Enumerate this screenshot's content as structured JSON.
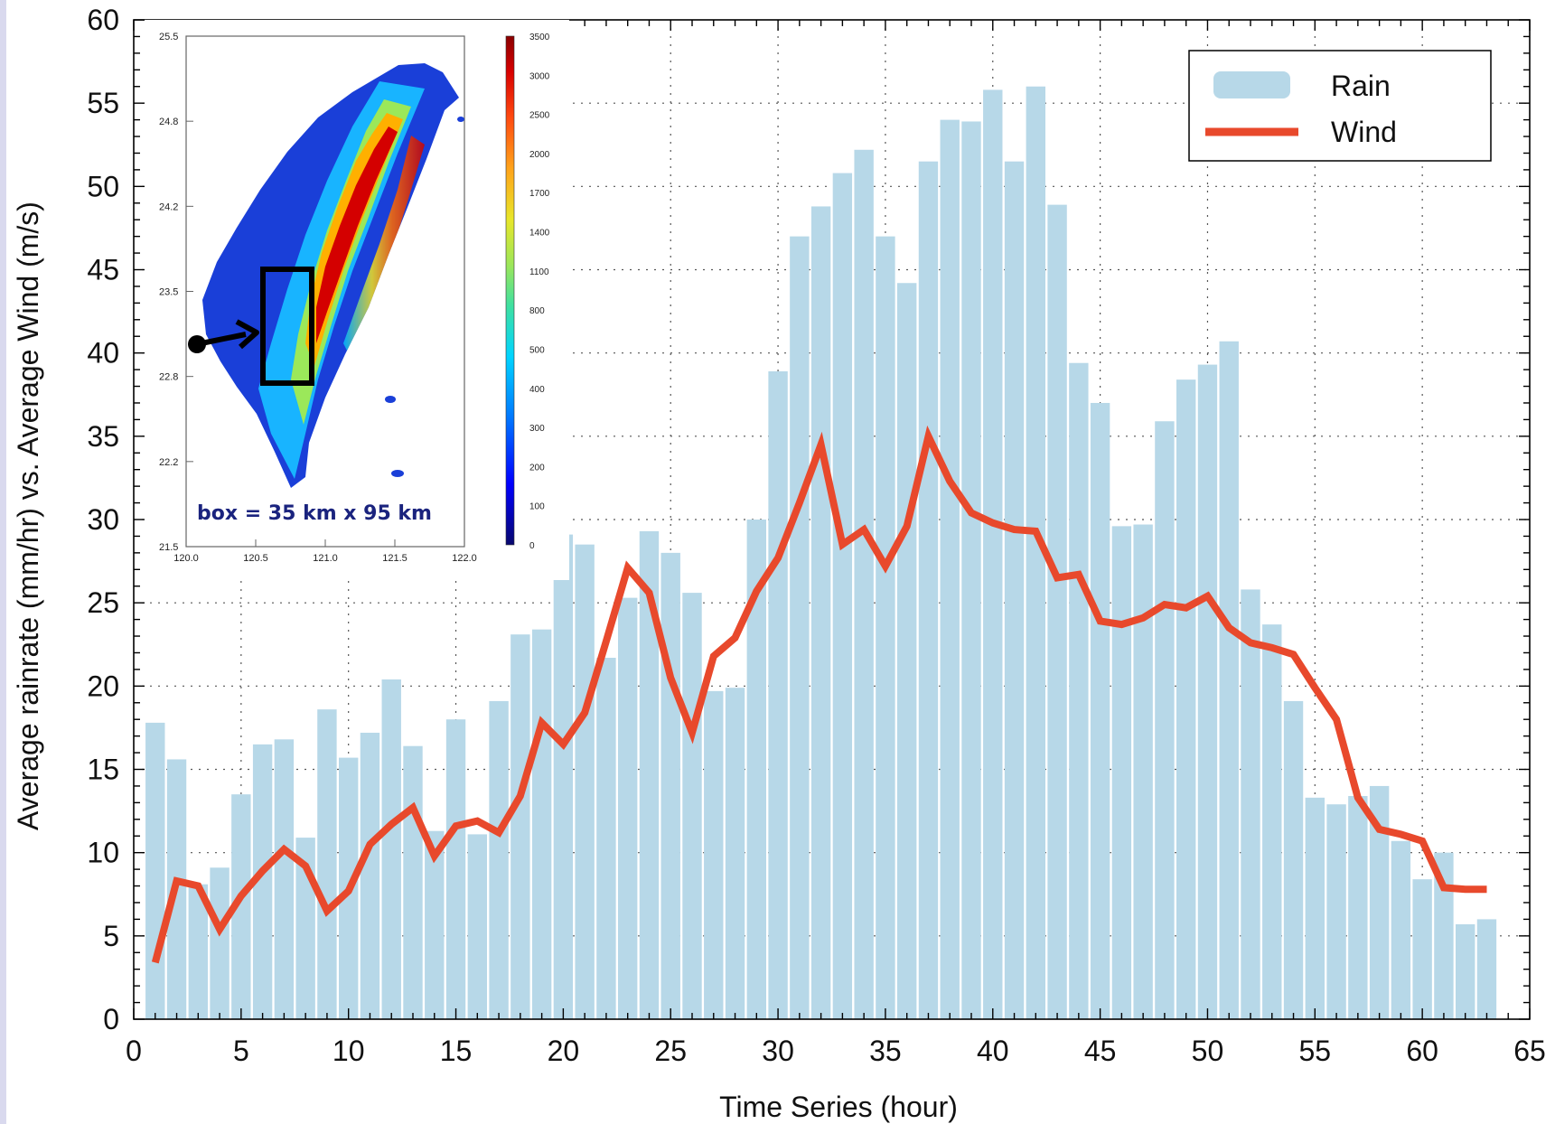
{
  "colors": {
    "rain": "#b7d8e8",
    "wind": "#e8492c",
    "frame": "#000000",
    "grid": "#555555",
    "left_strip": "#d9d9ee"
  },
  "chart_data": {
    "type": "bar",
    "title": "",
    "xlabel": "Time Series (hour)",
    "ylabel": "Average rainrate (mm/hr) vs. Average Wind (m/s)",
    "xlim": [
      0,
      65
    ],
    "ylim": [
      0,
      60
    ],
    "x_ticks": [
      "0",
      "5",
      "10",
      "15",
      "20",
      "25",
      "30",
      "35",
      "40",
      "45",
      "50",
      "55",
      "60",
      "65"
    ],
    "y_ticks": [
      "0",
      "5",
      "10",
      "15",
      "20",
      "25",
      "30",
      "35",
      "40",
      "45",
      "50",
      "55",
      "60"
    ],
    "grid": true,
    "legend": {
      "placement": "top-right",
      "entries": [
        {
          "label": "Rain",
          "style": "bar"
        },
        {
          "label": "Wind",
          "style": "line"
        }
      ]
    },
    "series": [
      {
        "name": "Rain",
        "type": "bar",
        "x": [
          1,
          2,
          3,
          4,
          5,
          6,
          7,
          8,
          9,
          10,
          11,
          12,
          13,
          14,
          15,
          16,
          17,
          18,
          19,
          20,
          21,
          22,
          23,
          24,
          25,
          26,
          27,
          28,
          29,
          30,
          31,
          32,
          33,
          34,
          35,
          36,
          37,
          38,
          39,
          40,
          41,
          42,
          43,
          44,
          45,
          46,
          47,
          48,
          49,
          50,
          51,
          52,
          53,
          54,
          55,
          56,
          57,
          58,
          59,
          60,
          61,
          62,
          63
        ],
        "values": [
          17.8,
          15.6,
          8.1,
          9.1,
          13.5,
          16.5,
          16.8,
          10.9,
          18.6,
          15.7,
          17.2,
          20.4,
          16.4,
          11.3,
          18.0,
          11.1,
          19.1,
          23.1,
          23.4,
          29.1,
          28.5,
          21.7,
          25.3,
          29.3,
          28.0,
          25.6,
          19.7,
          19.9,
          30.0,
          38.9,
          47.0,
          48.8,
          50.8,
          52.2,
          47.0,
          44.2,
          51.5,
          54.0,
          53.9,
          55.8,
          51.5,
          56.0,
          48.9,
          39.4,
          37.0,
          29.6,
          29.7,
          35.9,
          38.4,
          39.3,
          40.7,
          25.8,
          23.7,
          19.1,
          13.3,
          12.9,
          13.4,
          14.0,
          10.7,
          8.4,
          10.0,
          5.7,
          6.0
        ]
      },
      {
        "name": "Wind",
        "type": "line",
        "x": [
          1,
          2,
          3,
          4,
          5,
          6,
          7,
          8,
          9,
          10,
          11,
          12,
          13,
          14,
          15,
          16,
          17,
          18,
          19,
          20,
          21,
          22,
          23,
          24,
          25,
          26,
          27,
          28,
          29,
          30,
          31,
          32,
          33,
          34,
          35,
          36,
          37,
          38,
          39,
          40,
          41,
          42,
          43,
          44,
          45,
          46,
          47,
          48,
          49,
          50,
          51,
          52,
          53,
          54,
          55,
          56,
          57,
          58,
          59,
          60,
          61,
          62,
          63
        ],
        "values": [
          3.4,
          8.3,
          8.0,
          5.4,
          7.4,
          8.9,
          10.2,
          9.2,
          6.5,
          7.7,
          10.5,
          11.7,
          12.7,
          9.8,
          11.6,
          11.9,
          11.2,
          13.4,
          17.8,
          16.5,
          18.4,
          22.7,
          27.1,
          25.6,
          20.5,
          17.2,
          21.8,
          22.9,
          25.7,
          27.7,
          31.0,
          34.5,
          28.5,
          29.4,
          27.2,
          29.6,
          35.0,
          32.3,
          30.4,
          29.8,
          29.4,
          29.3,
          26.5,
          26.7,
          23.9,
          23.7,
          24.1,
          24.9,
          24.7,
          25.4,
          23.5,
          22.6,
          22.3,
          21.9,
          19.9,
          18.0,
          13.3,
          11.4,
          11.1,
          10.7,
          7.9,
          7.8,
          7.8
        ]
      }
    ]
  },
  "inset_map": {
    "lat_ticks": [
      "25.5",
      "24.8",
      "24.2",
      "23.5",
      "22.8",
      "22.2",
      "21.5"
    ],
    "lon_ticks": [
      "120.0",
      "120.5",
      "121.0",
      "121.5",
      "122.0"
    ],
    "colorbar_ticks": [
      "3500",
      "3000",
      "2500",
      "2000",
      "1700",
      "1400",
      "1100",
      "800",
      "500",
      "400",
      "300",
      "200",
      "100",
      "0"
    ],
    "annotation": "box = 35 km x 95 km"
  }
}
